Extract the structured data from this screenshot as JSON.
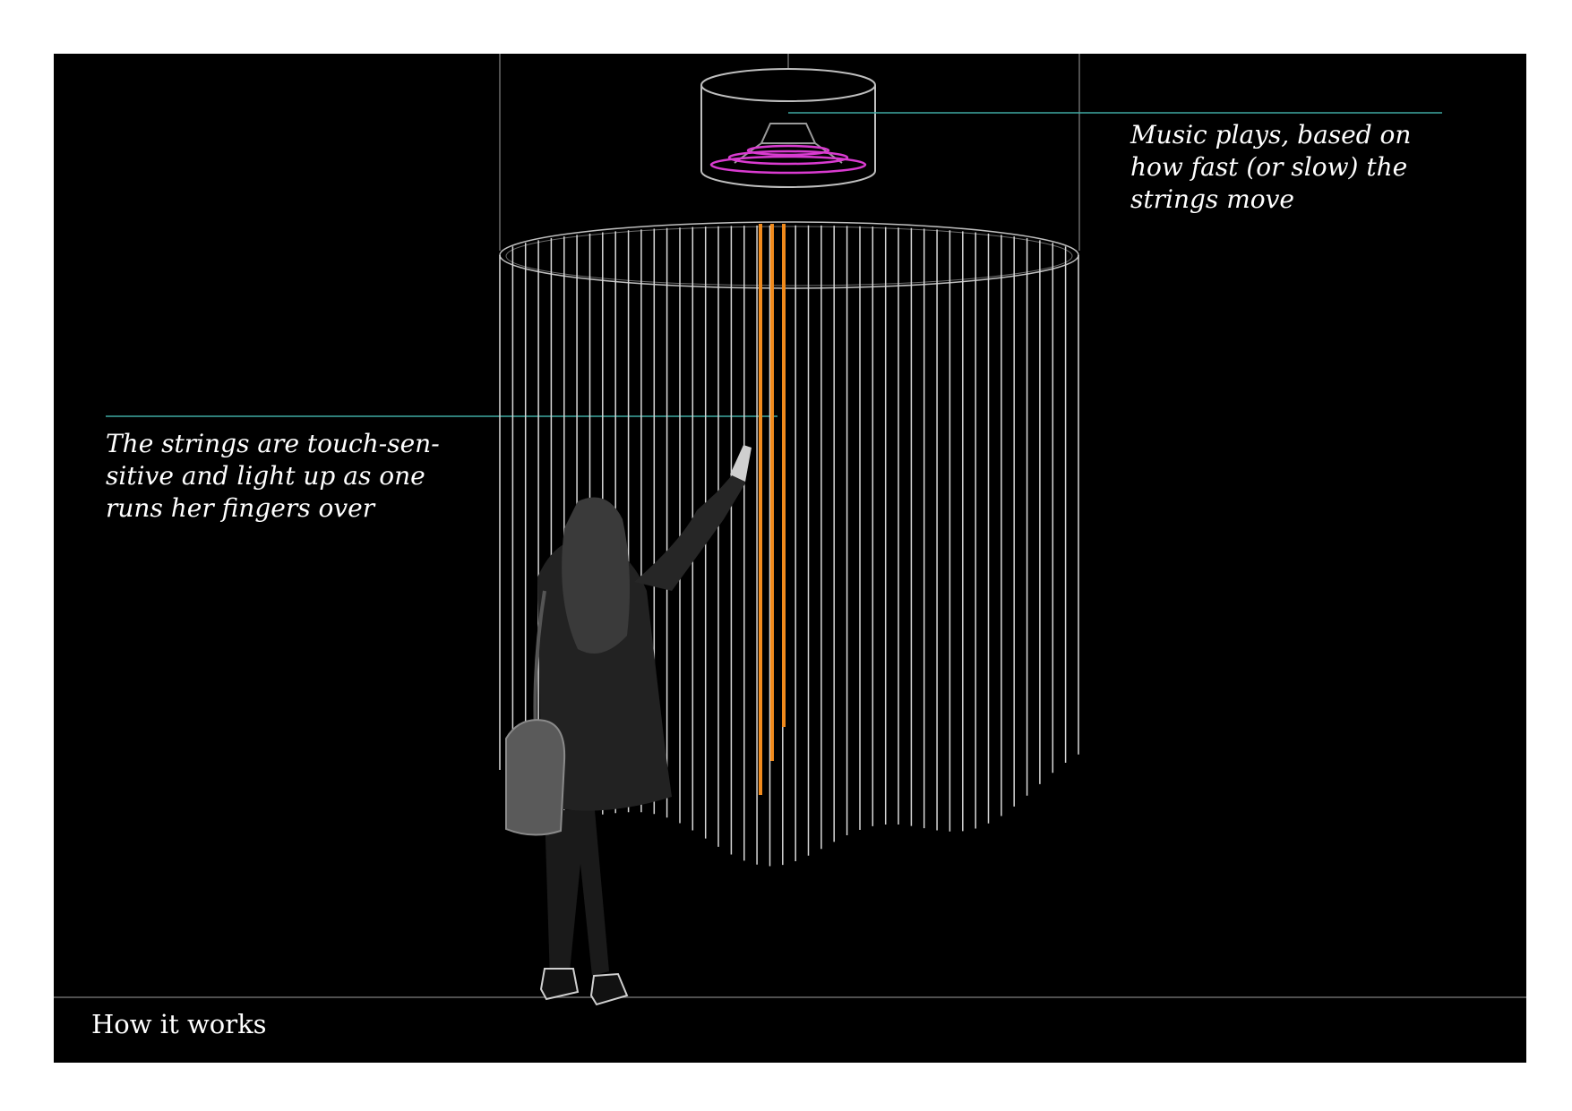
{
  "captions": {
    "music": [
      "Music plays, based on",
      "how fast (or slow) the",
      "strings move"
    ],
    "strings": [
      "The strings are touch-sen-",
      "sitive and  light up as one",
      "runs her fingers over"
    ]
  },
  "footer": {
    "title": "How it works"
  },
  "colors": {
    "background": "#000000",
    "frame": "#ffffff",
    "string": "#d9d9d9",
    "lit_string": "#f08a1c",
    "speaker_wave": "#d93bd0",
    "callout_line": "#3fa9a3",
    "outline": "#bfbfbf"
  },
  "icons": {
    "speaker": "speaker-icon",
    "person": "person-silhouette-icon"
  }
}
